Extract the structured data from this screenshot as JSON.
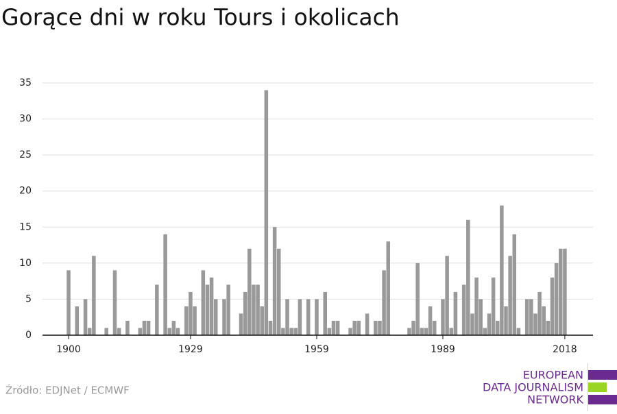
{
  "chart_data": {
    "type": "bar",
    "title": "Gorące dni w roku Tours i okolicach",
    "source": "Źródło: EDJNet / ECMWF",
    "logo": [
      "EUROPEAN",
      "DATA JOURNALISM",
      "NETWORK"
    ],
    "color": "#999999",
    "grid": true,
    "x": [
      1900,
      1901,
      1902,
      1903,
      1904,
      1905,
      1906,
      1907,
      1908,
      1909,
      1910,
      1911,
      1912,
      1913,
      1914,
      1915,
      1916,
      1917,
      1918,
      1919,
      1920,
      1921,
      1922,
      1923,
      1924,
      1925,
      1926,
      1927,
      1928,
      1929,
      1930,
      1931,
      1932,
      1933,
      1934,
      1935,
      1936,
      1937,
      1938,
      1939,
      1940,
      1941,
      1942,
      1943,
      1944,
      1945,
      1946,
      1947,
      1948,
      1949,
      1950,
      1951,
      1952,
      1953,
      1954,
      1955,
      1956,
      1957,
      1958,
      1959,
      1960,
      1961,
      1962,
      1963,
      1964,
      1965,
      1966,
      1967,
      1968,
      1969,
      1970,
      1971,
      1972,
      1973,
      1974,
      1975,
      1976,
      1977,
      1978,
      1979,
      1980,
      1981,
      1982,
      1983,
      1984,
      1985,
      1986,
      1987,
      1988,
      1989,
      1990,
      1991,
      1992,
      1993,
      1994,
      1995,
      1996,
      1997,
      1998,
      1999,
      2000,
      2001,
      2002,
      2003,
      2004,
      2005,
      2006,
      2007,
      2008,
      2009,
      2010,
      2011,
      2012,
      2013,
      2014,
      2015,
      2016,
      2017,
      2018
    ],
    "values": [
      9,
      0,
      4,
      0,
      5,
      1,
      11,
      0,
      0,
      1,
      0,
      9,
      1,
      0,
      2,
      0,
      0,
      1,
      2,
      2,
      0,
      7,
      0,
      14,
      1,
      2,
      1,
      0,
      4,
      6,
      4,
      0,
      9,
      7,
      8,
      5,
      0,
      5,
      7,
      0,
      0,
      3,
      6,
      12,
      7,
      7,
      4,
      34,
      2,
      15,
      12,
      1,
      5,
      1,
      1,
      5,
      0,
      5,
      0,
      5,
      0,
      6,
      1,
      2,
      2,
      0,
      0,
      1,
      2,
      2,
      0,
      3,
      0,
      2,
      2,
      9,
      13,
      0,
      0,
      0,
      0,
      1,
      2,
      10,
      1,
      1,
      4,
      2,
      0,
      5,
      11,
      1,
      6,
      0,
      7,
      16,
      3,
      8,
      5,
      1,
      3,
      8,
      2,
      18,
      4,
      11,
      14,
      1,
      0,
      5,
      5,
      3,
      6,
      4,
      2,
      8,
      10,
      12,
      12
    ],
    "xlim": [
      1893.8,
      2024.7
    ],
    "xticks": [
      1900,
      1929,
      1959,
      1989,
      2018
    ],
    "ylim": [
      0,
      35
    ],
    "yticks": [
      0,
      5,
      10,
      15,
      20,
      25,
      30,
      35
    ]
  }
}
